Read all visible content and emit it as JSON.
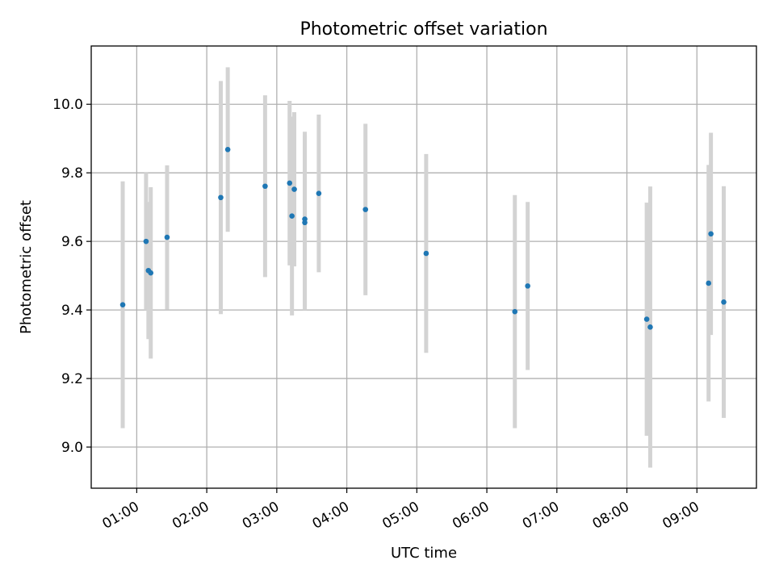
{
  "chart_data": {
    "type": "scatter",
    "title": "Photometric offset variation",
    "xlabel": "UTC time",
    "ylabel": "Photometric offset",
    "x_ticks": [
      {
        "label": "01:00",
        "hour": 1
      },
      {
        "label": "02:00",
        "hour": 2
      },
      {
        "label": "03:00",
        "hour": 3
      },
      {
        "label": "04:00",
        "hour": 4
      },
      {
        "label": "05:00",
        "hour": 5
      },
      {
        "label": "06:00",
        "hour": 6
      },
      {
        "label": "07:00",
        "hour": 7
      },
      {
        "label": "08:00",
        "hour": 8
      },
      {
        "label": "09:00",
        "hour": 9
      }
    ],
    "y_ticks": [
      {
        "label": "9.0",
        "value": 9.0
      },
      {
        "label": "9.2",
        "value": 9.2
      },
      {
        "label": "9.4",
        "value": 9.4
      },
      {
        "label": "9.6",
        "value": 9.6
      },
      {
        "label": "9.8",
        "value": 9.8
      },
      {
        "label": "10.0",
        "value": 10.0
      }
    ],
    "xlim": [
      "00:21",
      "09:51"
    ],
    "ylim": [
      8.88,
      10.17
    ],
    "grid": true,
    "legend": "none",
    "marker_color": "#1f77b4",
    "errorbar_color": "#d3d3d3",
    "points": [
      {
        "time": "00:48",
        "y": 9.415,
        "err": 0.36
      },
      {
        "time": "01:08",
        "y": 9.6,
        "err": 0.2
      },
      {
        "time": "01:10",
        "y": 9.515,
        "err": 0.2
      },
      {
        "time": "01:12",
        "y": 9.508,
        "err": 0.25
      },
      {
        "time": "01:26",
        "y": 9.612,
        "err": 0.21
      },
      {
        "time": "02:12",
        "y": 9.728,
        "err": 0.34
      },
      {
        "time": "02:18",
        "y": 9.868,
        "err": 0.24
      },
      {
        "time": "02:50",
        "y": 9.761,
        "err": 0.265
      },
      {
        "time": "03:11",
        "y": 9.77,
        "err": 0.24
      },
      {
        "time": "03:13",
        "y": 9.674,
        "err": 0.29
      },
      {
        "time": "03:15",
        "y": 9.752,
        "err": 0.225
      },
      {
        "time": "03:24",
        "y": 9.665,
        "err": 0.255
      },
      {
        "time": "03:24",
        "y": 9.655,
        "err": 0.255
      },
      {
        "time": "03:36",
        "y": 9.74,
        "err": 0.23
      },
      {
        "time": "04:16",
        "y": 9.693,
        "err": 0.25
      },
      {
        "time": "05:08",
        "y": 9.565,
        "err": 0.29
      },
      {
        "time": "06:24",
        "y": 9.395,
        "err": 0.34
      },
      {
        "time": "06:35",
        "y": 9.47,
        "err": 0.245
      },
      {
        "time": "08:17",
        "y": 9.373,
        "err": 0.34
      },
      {
        "time": "08:20",
        "y": 9.35,
        "err": 0.41
      },
      {
        "time": "09:10",
        "y": 9.478,
        "err": 0.345
      },
      {
        "time": "09:12",
        "y": 9.622,
        "err": 0.295
      },
      {
        "time": "09:23",
        "y": 9.423,
        "err": 0.338
      }
    ]
  }
}
